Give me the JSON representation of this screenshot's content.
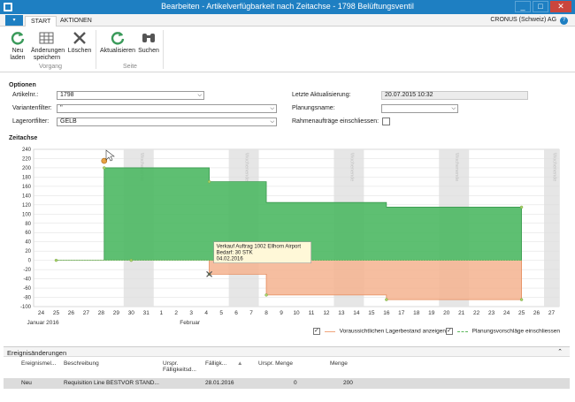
{
  "window": {
    "title": "Bearbeiten - Artikelverfügbarkeit nach Zeitachse - 1798 Belüftungsventil",
    "minimize": "_",
    "maximize": "□",
    "close": "✕"
  },
  "tabs": {
    "menu": "▾",
    "start": "START",
    "aktionen": "AKTIONEN",
    "company": "CRONUS (Schweiz) AG",
    "help": "?"
  },
  "ribbon": {
    "neu_laden": "Neu\nladen",
    "aenderungen_speichern": "Änderungen\nspeichern",
    "loeschen": "Löschen",
    "aktualisieren": "Aktualisieren",
    "suchen": "Suchen",
    "group_vorgang": "Vorgang",
    "group_seite": "Seite"
  },
  "optionen": {
    "title": "Optionen",
    "artikelnr_label": "Artikelnr.:",
    "artikelnr_value": "1798",
    "variantenfilter_label": "Variantenfilter:",
    "variantenfilter_value": "''",
    "lagerortfilter_label": "Lagerortfilter:",
    "lagerortfilter_value": "GELB",
    "letzte_aktualisierung_label": "Letzte Aktualisierung:",
    "letzte_aktualisierung_value": "20.07.2015 10:32",
    "planungsname_label": "Planungsname:",
    "planungsname_value": "",
    "rahmenauftraege_label": "Rahmenaufträge einschliessen:"
  },
  "zeitachse": {
    "title": "Zeitachse"
  },
  "chart_data": {
    "type": "area",
    "x_tick_labels": [
      "24",
      "25",
      "26",
      "27",
      "28",
      "29",
      "30",
      "31",
      "1",
      "2",
      "3",
      "4",
      "5",
      "6",
      "7",
      "8",
      "9",
      "10",
      "11",
      "12",
      "13",
      "14",
      "15",
      "16",
      "17",
      "18",
      "19",
      "20",
      "21",
      "22",
      "23",
      "24",
      "25",
      "26",
      "27"
    ],
    "month_labels": [
      "Januar 2016",
      "Februar"
    ],
    "weekend_label": "Wochenende",
    "ylim": [
      -100,
      240
    ],
    "y_ticks": [
      -100,
      -80,
      -60,
      -40,
      -20,
      0,
      20,
      40,
      60,
      80,
      100,
      120,
      140,
      160,
      180,
      200,
      220,
      240
    ],
    "weekends_at_index": [
      [
        6,
        8
      ],
      [
        13,
        15
      ],
      [
        20,
        22
      ],
      [
        27,
        29
      ],
      [
        34,
        35
      ]
    ],
    "series": [
      {
        "name": "Voraussichtlichen Lagerbestand anzeigen",
        "color": "#f0a57c",
        "points": [
          [
            1,
            0
          ],
          [
            4.2,
            0
          ],
          [
            4.2,
            200
          ],
          [
            11.2,
            200
          ],
          [
            11.2,
            170
          ],
          [
            15,
            170
          ],
          [
            15,
            125
          ],
          [
            23,
            125
          ],
          [
            23,
            115
          ],
          [
            32,
            115
          ]
        ]
      },
      {
        "name": "Planungsvorschläge einschliessen",
        "color": "#5cb85c",
        "points": [
          [
            1,
            0
          ],
          [
            4.2,
            0
          ],
          [
            4.2,
            200
          ],
          [
            11.2,
            200
          ],
          [
            11.2,
            170
          ],
          [
            15,
            170
          ],
          [
            15,
            125
          ],
          [
            23,
            125
          ],
          [
            23,
            115
          ],
          [
            32,
            115
          ]
        ]
      }
    ],
    "projected": [
      [
        1,
        0
      ],
      [
        6,
        0
      ],
      [
        11.2,
        0
      ],
      [
        11.2,
        -30
      ],
      [
        15,
        -30
      ],
      [
        15,
        -75
      ],
      [
        23,
        -75
      ],
      [
        23,
        -85
      ],
      [
        32,
        -85
      ]
    ],
    "tooltip": [
      "Verkauf Auftrag 1002 Ellhorn Airport",
      "Bedarf: 30 STK",
      "04.02.2016"
    ]
  },
  "legend": {
    "voraussichtlich": "Voraussichtlichen Lagerbestand anzeigen",
    "planung": "Planungsvorschläge einschliessen"
  },
  "ereignisse": {
    "title": "Ereignisänderungen",
    "columns": [
      "Ereignismel...",
      "Beschreibung",
      "Urspr. Fälligkeitsd...",
      "Fälligk...",
      "Urspr. Menge",
      "Menge"
    ],
    "rows": [
      [
        "Neu",
        "Requisition Line BESTVOR STAND...",
        "",
        "28.01.2016",
        "0",
        "200"
      ]
    ]
  }
}
